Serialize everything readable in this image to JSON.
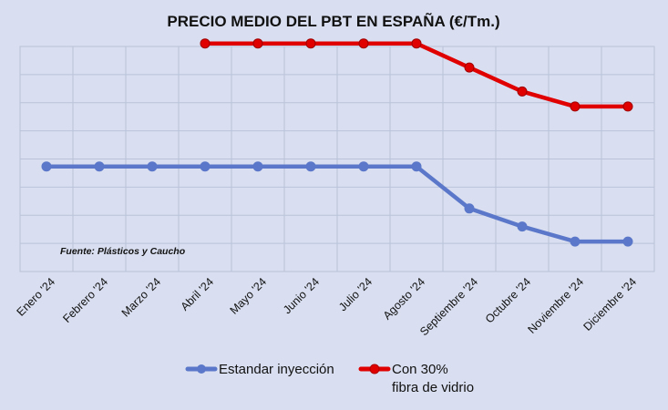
{
  "chart_data": {
    "type": "line",
    "title": "PRECIO MEDIO DEL PBT EN ESPAÑA (€/Tm.)",
    "xlabel": "",
    "ylabel": "",
    "categories": [
      "Enero '24",
      "Febrero '24",
      "Marzo '24",
      "Abril '24",
      "Mayo '24",
      "Junio '24",
      "Julio '24",
      "Agosto '24",
      "Septiembre '24",
      "Octubre '24",
      "Noviembre '24",
      "Diciembre '24"
    ],
    "ylim": [
      0,
      7.5
    ],
    "y_gridlines": 8,
    "y_tick_labels_visible": false,
    "series": [
      {
        "name": "Estandar inyección",
        "color": "#5b77c9",
        "values": [
          3.5,
          3.5,
          3.5,
          3.5,
          3.5,
          3.5,
          3.5,
          3.5,
          2.1,
          1.5,
          1.0,
          1.0
        ]
      },
      {
        "name_lines": [
          "Con 30%",
          "fibra de vidrio"
        ],
        "color": "#e00000",
        "marker_color": "#e00000",
        "values": [
          null,
          null,
          null,
          7.6,
          7.6,
          7.6,
          7.6,
          7.6,
          6.8,
          6.0,
          5.5,
          5.5
        ]
      }
    ],
    "source_note": "Fuente: Plásticos y Caucho",
    "legend_position": "bottom"
  }
}
